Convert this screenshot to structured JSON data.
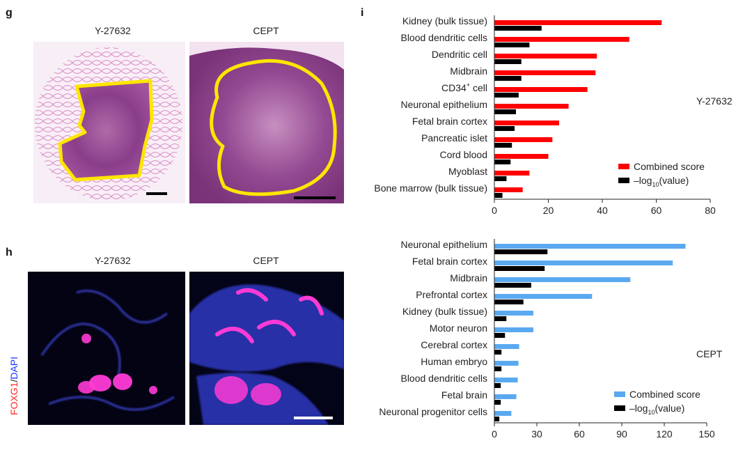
{
  "panels": {
    "g": {
      "letter": "g",
      "left_title": "Y-27632",
      "right_title": "CEPT"
    },
    "h": {
      "letter": "h",
      "left_title": "Y-27632",
      "right_title": "CEPT",
      "stain_red": "FOXG1",
      "stain_sep": "/",
      "stain_blue": "DAPI"
    },
    "i": {
      "letter": "i"
    }
  },
  "colors": {
    "red": "#ff0000",
    "blue": "#5aa9f0",
    "black": "#000000",
    "he_pink": "#e8a8d8",
    "outline": "#ffe600"
  },
  "chart_data": [
    {
      "type": "bar",
      "orientation": "horizontal",
      "side_label": "Y-27632",
      "categories": [
        "Kidney (bulk tissue)",
        "Blood dendritic cells",
        "Dendritic cell",
        "Midbrain",
        "CD34+ cell",
        "Neuronal epithelium",
        "Fetal brain cortex",
        "Pancreatic islet",
        "Cord blood",
        "Myoblast",
        "Bone marrow (bulk tissue)"
      ],
      "series": [
        {
          "name": "Combined score",
          "color": "#ff0000",
          "values": [
            62,
            50,
            38,
            37.5,
            34.5,
            27.5,
            24,
            21.5,
            20,
            13,
            10.5
          ]
        },
        {
          "name": "-log10(value)",
          "color": "#000000",
          "values": [
            17.5,
            13,
            10,
            10,
            9,
            8,
            7.5,
            6.5,
            6,
            4.5,
            3
          ]
        }
      ],
      "legend": [
        {
          "main": "Combined score",
          "sub": "",
          "tail": ""
        },
        {
          "main": "–log",
          "sub": "10",
          "tail": "(value)"
        }
      ],
      "xlim": [
        0,
        80
      ],
      "xticks": [
        "0",
        "20",
        "40",
        "60",
        "80"
      ]
    },
    {
      "type": "bar",
      "orientation": "horizontal",
      "side_label": "CEPT",
      "categories": [
        "Neuronal epithelium",
        "Fetal brain cortex",
        "Midbrain",
        "Prefrontal cortex",
        "Kidney (bulk tissue)",
        "Motor neuron",
        "Cerebral cortex",
        "Human embryo",
        "Blood dendritic cells",
        "Fetal brain",
        "Neuronal progenitor cells"
      ],
      "series": [
        {
          "name": "Combined score",
          "color": "#5aa9f0",
          "values": [
            135,
            126,
            96,
            69,
            27.5,
            27.5,
            17.5,
            17,
            16.5,
            15.5,
            12
          ]
        },
        {
          "name": "-log10(value)",
          "color": "#000000",
          "values": [
            37.5,
            35.5,
            26,
            20.5,
            8.5,
            7.5,
            5,
            5,
            4.5,
            4.5,
            3.5
          ]
        }
      ],
      "legend": [
        {
          "main": "Combined score",
          "sub": "",
          "tail": ""
        },
        {
          "main": "–log",
          "sub": "10",
          "tail": "(value)"
        }
      ],
      "xlim": [
        0,
        150
      ],
      "xticks": [
        "0",
        "30",
        "60",
        "90",
        "120",
        "150"
      ]
    }
  ]
}
